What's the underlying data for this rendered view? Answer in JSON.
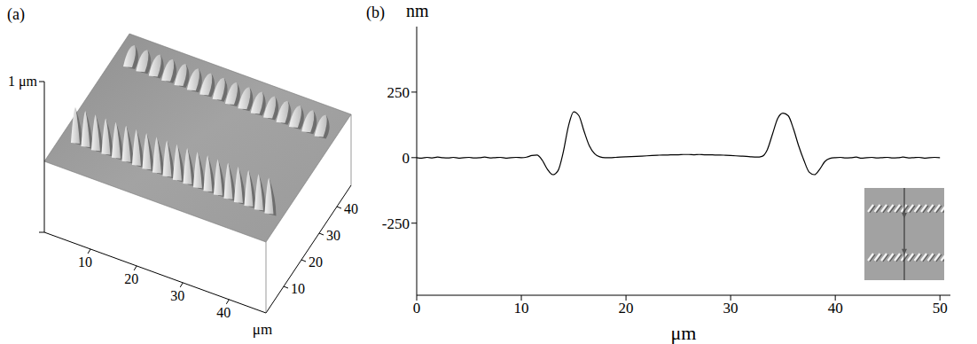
{
  "chart_data": [
    {
      "type": "surface",
      "label": "(a)",
      "z_label": "1 μm",
      "xlim": [
        0,
        48
      ],
      "ylim": [
        0,
        48
      ],
      "xticks": [
        10,
        20,
        30,
        40
      ],
      "yticks": [
        10,
        20,
        30,
        40
      ],
      "unit": "μm"
    },
    {
      "type": "line",
      "label": "(b)",
      "ylabel": "nm",
      "xlabel": "μm",
      "xlim": [
        0,
        51
      ],
      "ylim": [
        -525,
        500
      ],
      "xticks": [
        0,
        10,
        20,
        30,
        40,
        50
      ],
      "yticks": [
        -250,
        0,
        250
      ],
      "grid": false,
      "color": "#000000",
      "line_style": "solid",
      "marker": "none",
      "x": [
        0,
        0.5,
        1,
        1.5,
        2,
        2.5,
        3,
        3.5,
        4,
        4.5,
        5,
        5.5,
        6,
        6.5,
        7,
        7.5,
        8,
        8.5,
        9,
        9.5,
        10,
        10.5,
        11,
        11.5,
        12,
        12.5,
        13,
        13.5,
        14,
        14.5,
        15,
        15.5,
        16,
        16.5,
        17,
        17.5,
        18,
        18.5,
        19,
        19.5,
        20,
        20.5,
        21,
        21.5,
        22,
        22.5,
        23,
        23.5,
        24,
        24.5,
        25,
        25.5,
        26,
        26.5,
        27,
        27.5,
        28,
        28.5,
        29,
        29.5,
        30,
        30.5,
        31,
        31.5,
        32,
        32.5,
        33,
        33.5,
        34,
        34.5,
        35,
        35.5,
        36,
        36.5,
        37,
        37.5,
        38,
        38.5,
        39,
        39.5,
        40,
        40.5,
        41,
        41.5,
        42,
        42.5,
        43,
        43.5,
        44,
        44.5,
        45,
        45.5,
        46,
        46.5,
        47,
        47.5,
        48,
        48.5,
        49,
        49.5,
        50
      ],
      "values": [
        0,
        -2,
        1,
        -1,
        2,
        0,
        -1,
        1,
        -2,
        0,
        1,
        -1,
        0,
        2,
        -1,
        0,
        1,
        -2,
        0,
        1,
        0,
        2,
        8,
        10,
        -10,
        -45,
        -65,
        -50,
        20,
        120,
        175,
        160,
        100,
        45,
        15,
        3,
        0,
        0,
        1,
        2,
        3,
        4,
        5,
        6,
        7,
        8,
        9,
        10,
        10,
        11,
        11,
        12,
        12,
        11,
        12,
        11,
        11,
        10,
        10,
        9,
        8,
        7,
        6,
        5,
        3,
        2,
        5,
        30,
        90,
        150,
        170,
        160,
        110,
        45,
        -10,
        -55,
        -65,
        -45,
        -15,
        -3,
        0,
        1,
        -1,
        0,
        2,
        -2,
        0,
        1,
        -1,
        0,
        1,
        -1,
        0,
        2,
        -1,
        0,
        1,
        -2,
        0,
        1,
        0
      ]
    }
  ]
}
